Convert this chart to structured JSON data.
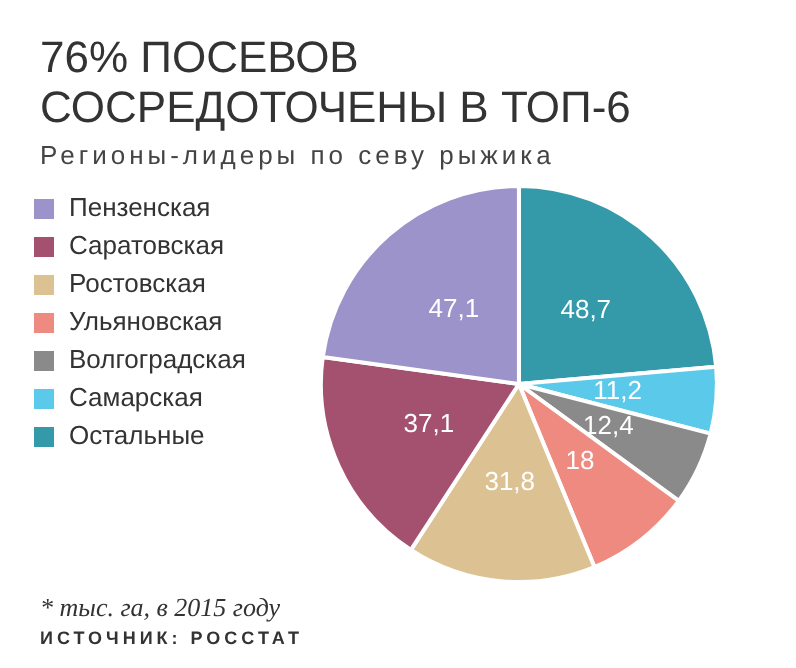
{
  "chart_data": {
    "type": "pie",
    "title": "76% ПОСЕВОВ СОСРЕДОТОЧЕНЫ В ТОП-6",
    "subtitle": "Регионы-лидеры по севу рыжика",
    "categories": [
      "Пензенская",
      "Саратовская",
      "Ростовская",
      "Ульяновская",
      "Волгоградская",
      "Самарская",
      "Остальные"
    ],
    "values": [
      47.1,
      37.1,
      31.8,
      18,
      12.4,
      11.2,
      48.7
    ],
    "colors": [
      "#9b93c9",
      "#a4506f",
      "#dcc293",
      "#ef8a80",
      "#8a8a8a",
      "#5bc9ea",
      "#3499a8"
    ],
    "value_labels": [
      "47,1",
      "37,1",
      "31,8",
      "18",
      "12,4",
      "11,2",
      "48,7"
    ],
    "legend": "left",
    "annotations": [
      "* тыс. га, в 2015 году",
      "ИСТОЧНИК: РОССТАТ"
    ]
  }
}
